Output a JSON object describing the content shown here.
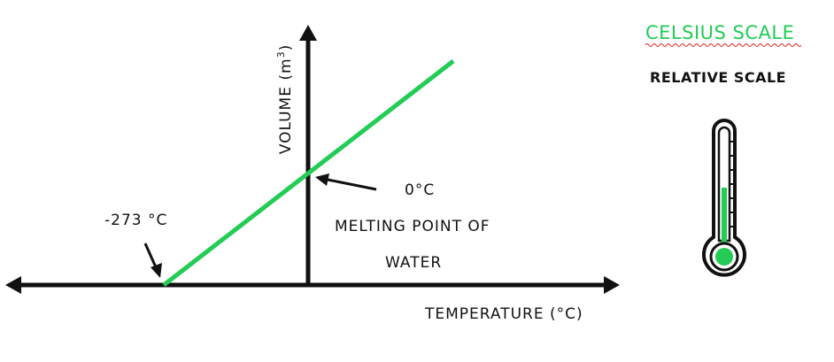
{
  "colors": {
    "accent_green": "#22cc55",
    "ink": "#111111",
    "squiggle_red": "#dd2222"
  },
  "diagram": {
    "y_axis_label": "VOLUME (m",
    "y_axis_exponent": "3",
    "y_axis_label_close": ")",
    "x_axis_label": "TEMPERATURE (°C)",
    "zero_label": "0°C",
    "zero_caption_line1": "MELTING POINT OF",
    "zero_caption_line2": "WATER",
    "absolute_zero_label": "-273 °C",
    "icon": "thermometer-icon"
  },
  "legend": {
    "title": "CELSIUS SCALE",
    "subtitle": "RELATIVE SCALE"
  }
}
